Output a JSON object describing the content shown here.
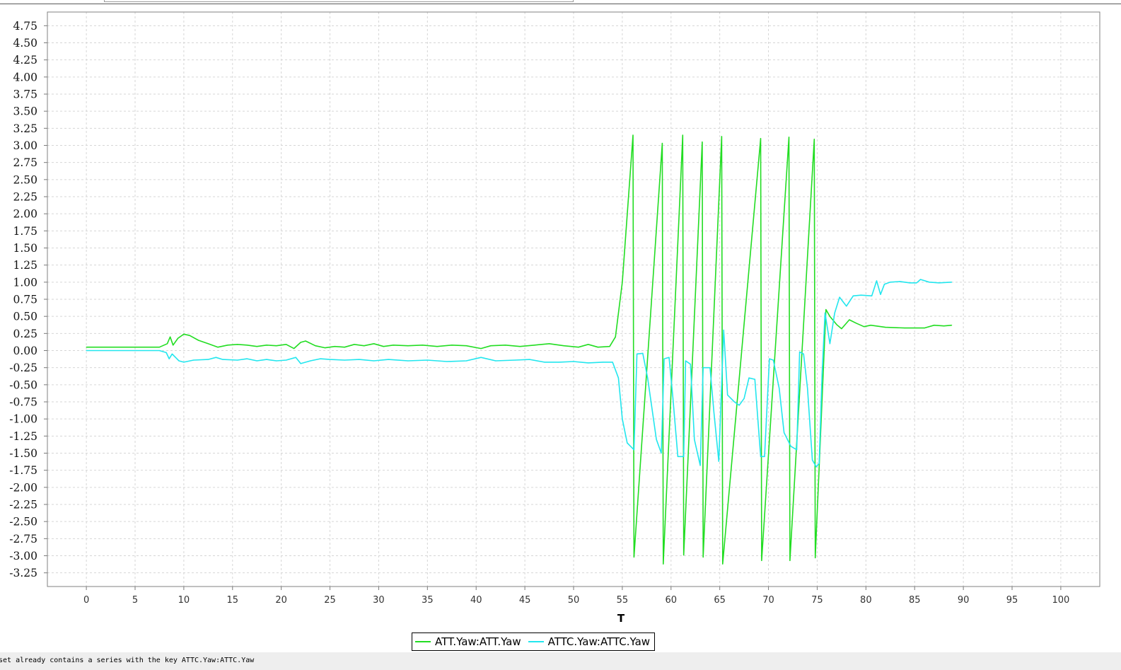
{
  "toolbar": {
    "field_value": ""
  },
  "chart_data": {
    "type": "line",
    "title": "",
    "xlabel": "T",
    "ylabel": "",
    "xlim": [
      -4,
      104
    ],
    "ylim": [
      -3.45,
      4.95
    ],
    "xticks": [
      0,
      5,
      10,
      15,
      20,
      25,
      30,
      35,
      40,
      45,
      50,
      55,
      60,
      65,
      70,
      75,
      80,
      85,
      90,
      95,
      100
    ],
    "yticks": [
      4.75,
      4.5,
      4.25,
      4.0,
      3.75,
      3.5,
      3.25,
      3.0,
      2.75,
      2.5,
      2.25,
      2.0,
      1.75,
      1.5,
      1.25,
      1.0,
      0.75,
      0.5,
      0.25,
      0.0,
      -0.25,
      -0.5,
      -0.75,
      -1.0,
      -1.25,
      -1.5,
      -1.75,
      -2.0,
      -2.25,
      -2.5,
      -2.75,
      -3.0,
      -3.25
    ],
    "grid": true,
    "legend_position": "bottom-center",
    "series": [
      {
        "name": "ATT.Yaw:ATT.Yaw",
        "color": "#22dd22",
        "points": [
          [
            0,
            0.05
          ],
          [
            7.5,
            0.05
          ],
          [
            8.3,
            0.1
          ],
          [
            8.6,
            0.2
          ],
          [
            8.9,
            0.08
          ],
          [
            9.4,
            0.18
          ],
          [
            10,
            0.24
          ],
          [
            10.6,
            0.22
          ],
          [
            11.5,
            0.15
          ],
          [
            12.5,
            0.1
          ],
          [
            13.5,
            0.05
          ],
          [
            14.5,
            0.08
          ],
          [
            15.5,
            0.09
          ],
          [
            16.5,
            0.08
          ],
          [
            17.5,
            0.06
          ],
          [
            18.5,
            0.08
          ],
          [
            19.5,
            0.07
          ],
          [
            20.5,
            0.09
          ],
          [
            21.3,
            0.03
          ],
          [
            22,
            0.12
          ],
          [
            22.5,
            0.14
          ],
          [
            23.5,
            0.07
          ],
          [
            24.5,
            0.04
          ],
          [
            25.5,
            0.06
          ],
          [
            26.5,
            0.05
          ],
          [
            27.5,
            0.09
          ],
          [
            28.5,
            0.07
          ],
          [
            29.5,
            0.1
          ],
          [
            30.5,
            0.06
          ],
          [
            31.5,
            0.08
          ],
          [
            33,
            0.07
          ],
          [
            34.5,
            0.08
          ],
          [
            36,
            0.06
          ],
          [
            37.5,
            0.08
          ],
          [
            39,
            0.07
          ],
          [
            40.5,
            0.03
          ],
          [
            41.5,
            0.07
          ],
          [
            43,
            0.08
          ],
          [
            44.5,
            0.06
          ],
          [
            46,
            0.08
          ],
          [
            47.5,
            0.1
          ],
          [
            49,
            0.07
          ],
          [
            50.5,
            0.05
          ],
          [
            51.5,
            0.09
          ],
          [
            52.5,
            0.05
          ],
          [
            53.7,
            0.06
          ],
          [
            54.3,
            0.2
          ],
          [
            55,
            1.0
          ],
          [
            56.1,
            3.15
          ],
          [
            56.2,
            -3.02
          ],
          [
            59.1,
            3.03
          ],
          [
            59.2,
            -3.12
          ],
          [
            61.2,
            3.15
          ],
          [
            61.3,
            -2.99
          ],
          [
            63.2,
            3.05
          ],
          [
            63.3,
            -3.02
          ],
          [
            65.2,
            3.13
          ],
          [
            65.3,
            -3.12
          ],
          [
            69.2,
            3.1
          ],
          [
            69.3,
            -3.07
          ],
          [
            72.1,
            3.12
          ],
          [
            72.2,
            -3.07
          ],
          [
            74.7,
            3.09
          ],
          [
            74.8,
            -3.03
          ],
          [
            75.9,
            0.6
          ],
          [
            76.3,
            0.5
          ],
          [
            77,
            0.38
          ],
          [
            77.5,
            0.32
          ],
          [
            78.3,
            0.45
          ],
          [
            79,
            0.4
          ],
          [
            79.8,
            0.35
          ],
          [
            80.5,
            0.37
          ],
          [
            82,
            0.34
          ],
          [
            84,
            0.33
          ],
          [
            86,
            0.33
          ],
          [
            87,
            0.37
          ],
          [
            88,
            0.36
          ],
          [
            88.8,
            0.37
          ]
        ]
      },
      {
        "name": "ATTC.Yaw:ATTC.Yaw",
        "color": "#22e6ee",
        "points": [
          [
            0,
            0.0
          ],
          [
            7.5,
            0.0
          ],
          [
            8.2,
            -0.03
          ],
          [
            8.5,
            -0.12
          ],
          [
            8.8,
            -0.05
          ],
          [
            9.5,
            -0.15
          ],
          [
            10,
            -0.17
          ],
          [
            11,
            -0.14
          ],
          [
            12.5,
            -0.13
          ],
          [
            13.3,
            -0.1
          ],
          [
            14,
            -0.13
          ],
          [
            15.5,
            -0.14
          ],
          [
            16.5,
            -0.12
          ],
          [
            17.5,
            -0.15
          ],
          [
            18.5,
            -0.13
          ],
          [
            19.5,
            -0.15
          ],
          [
            20.5,
            -0.14
          ],
          [
            21.5,
            -0.1
          ],
          [
            22,
            -0.19
          ],
          [
            23,
            -0.15
          ],
          [
            24,
            -0.12
          ],
          [
            25,
            -0.13
          ],
          [
            26.5,
            -0.14
          ],
          [
            28,
            -0.13
          ],
          [
            29.5,
            -0.15
          ],
          [
            31,
            -0.13
          ],
          [
            33,
            -0.15
          ],
          [
            35,
            -0.14
          ],
          [
            37,
            -0.16
          ],
          [
            39,
            -0.15
          ],
          [
            40.5,
            -0.1
          ],
          [
            42,
            -0.15
          ],
          [
            44,
            -0.14
          ],
          [
            45.5,
            -0.13
          ],
          [
            47,
            -0.17
          ],
          [
            48.5,
            -0.17
          ],
          [
            50,
            -0.16
          ],
          [
            51.5,
            -0.18
          ],
          [
            53,
            -0.17
          ],
          [
            54,
            -0.17
          ],
          [
            54.6,
            -0.4
          ],
          [
            55,
            -1.0
          ],
          [
            55.5,
            -1.35
          ],
          [
            56.2,
            -1.45
          ],
          [
            56.5,
            -0.05
          ],
          [
            57.1,
            -0.04
          ],
          [
            57.6,
            -0.4
          ],
          [
            58.5,
            -1.3
          ],
          [
            59,
            -1.5
          ],
          [
            59.3,
            -0.12
          ],
          [
            59.8,
            -0.1
          ],
          [
            60.2,
            -0.7
          ],
          [
            60.7,
            -1.55
          ],
          [
            61.3,
            -1.55
          ],
          [
            61.5,
            -0.15
          ],
          [
            62,
            -0.2
          ],
          [
            62.4,
            -1.3
          ],
          [
            63,
            -1.68
          ],
          [
            63.3,
            -0.25
          ],
          [
            64,
            -0.25
          ],
          [
            64.4,
            -0.9
          ],
          [
            64.9,
            -1.62
          ],
          [
            65.4,
            0.3
          ],
          [
            65.8,
            -0.65
          ],
          [
            66.5,
            -0.75
          ],
          [
            67,
            -0.8
          ],
          [
            67.5,
            -0.7
          ],
          [
            68,
            -0.4
          ],
          [
            68.6,
            -0.42
          ],
          [
            69.2,
            -1.55
          ],
          [
            69.6,
            -1.55
          ],
          [
            70.1,
            -0.12
          ],
          [
            70.5,
            -0.14
          ],
          [
            71.1,
            -0.55
          ],
          [
            71.6,
            -1.2
          ],
          [
            72.3,
            -1.4
          ],
          [
            72.9,
            -1.45
          ],
          [
            73.2,
            -0.02
          ],
          [
            73.6,
            -0.05
          ],
          [
            74,
            -0.55
          ],
          [
            74.5,
            -1.6
          ],
          [
            74.9,
            -1.7
          ],
          [
            75.2,
            -1.65
          ],
          [
            75.5,
            -0.35
          ],
          [
            75.8,
            0.55
          ],
          [
            76.3,
            0.1
          ],
          [
            76.8,
            0.55
          ],
          [
            77.3,
            0.78
          ],
          [
            78,
            0.65
          ],
          [
            78.7,
            0.8
          ],
          [
            79.5,
            0.81
          ],
          [
            80.6,
            0.8
          ],
          [
            81.1,
            1.02
          ],
          [
            81.5,
            0.82
          ],
          [
            81.9,
            0.97
          ],
          [
            82.5,
            1.0
          ],
          [
            83.5,
            1.01
          ],
          [
            84.5,
            0.99
          ],
          [
            85.2,
            0.99
          ],
          [
            85.6,
            1.04
          ],
          [
            86.5,
            1.0
          ],
          [
            87.5,
            0.99
          ],
          [
            88.8,
            1.0
          ]
        ]
      }
    ]
  },
  "status": {
    "message": "aset already contains a series with the key ATTC.Yaw:ATTC.Yaw"
  }
}
